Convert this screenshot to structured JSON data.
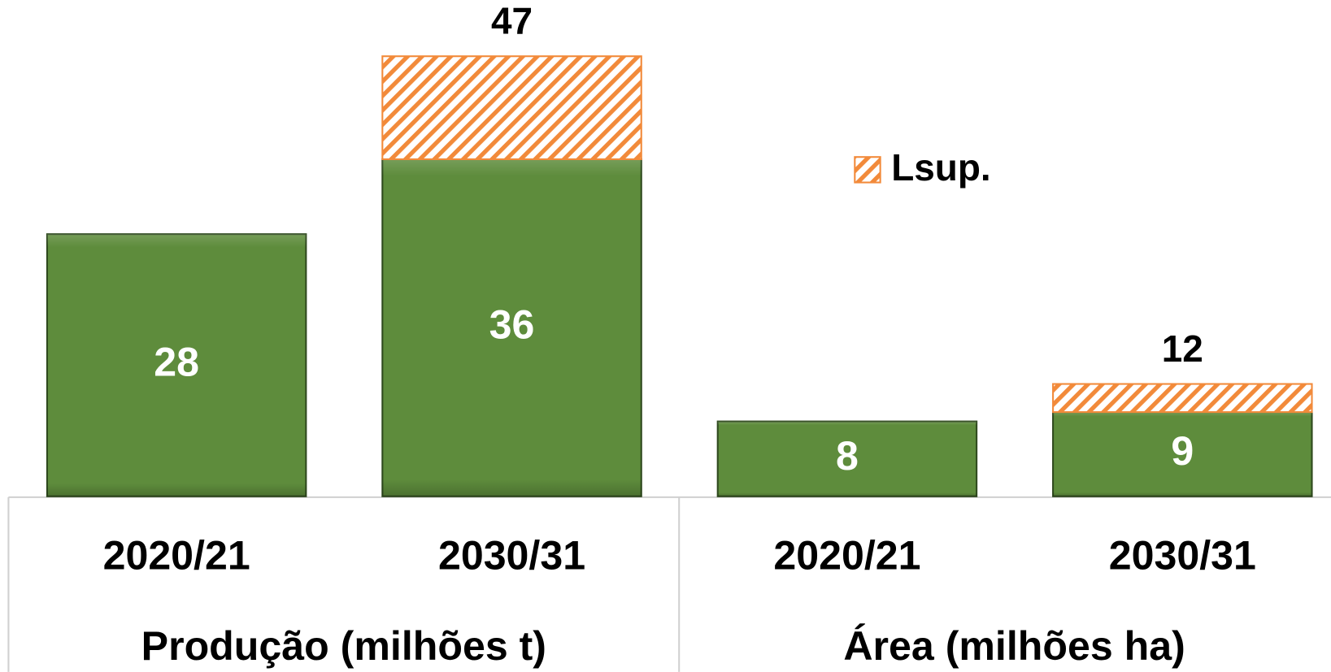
{
  "chart_data": {
    "type": "stacked-bar",
    "groups": [
      {
        "name": "Produção (milhões t)",
        "categories": [
          "2020/21",
          "2030/31"
        ]
      },
      {
        "name": "Área (milhões ha)",
        "categories": [
          "2020/21",
          "2030/31"
        ]
      }
    ],
    "series": [
      {
        "color": "#5e8c3c",
        "values": [
          28,
          36,
          8,
          9
        ]
      },
      {
        "name": "Lsup.",
        "color": "#f28a3a",
        "hatched": true,
        "values": [
          null,
          11,
          null,
          3
        ]
      }
    ],
    "totals": [
      null,
      47,
      null,
      12
    ],
    "ylim": [
      0,
      53
    ],
    "legend": "right"
  }
}
